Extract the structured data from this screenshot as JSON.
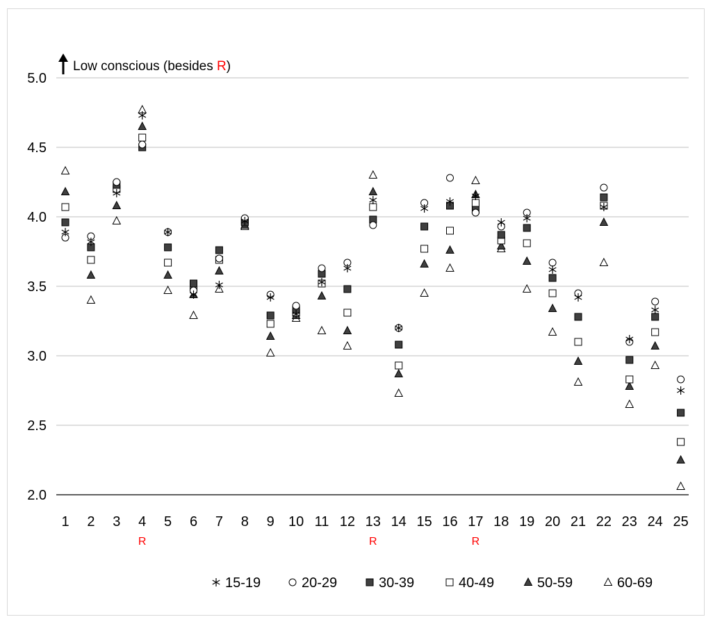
{
  "chart_data": {
    "type": "scatter",
    "title": "",
    "ylabel": "Low conscious (besides R)",
    "ylabel_parts": {
      "prefix": "Low conscious (besides ",
      "highlight": "R",
      "suffix": ")"
    },
    "highlight_color": "#ff0000",
    "ylim": [
      2.0,
      5.0
    ],
    "yticks": [
      "2.0",
      "2.5",
      "3.0",
      "3.5",
      "4.0",
      "4.5",
      "5.0"
    ],
    "categories": [
      "1",
      "2",
      "3",
      "4",
      "5",
      "6",
      "7",
      "8",
      "9",
      "10",
      "11",
      "12",
      "13",
      "14",
      "15",
      "16",
      "17",
      "18",
      "19",
      "20",
      "21",
      "22",
      "23",
      "24",
      "25"
    ],
    "reverse_marker": "R",
    "reverse_items": [
      4,
      13,
      17
    ],
    "grid": true,
    "legend_position": "bottom",
    "series": [
      {
        "name": "15-19",
        "marker": "asterisk",
        "values": [
          3.89,
          3.82,
          4.17,
          4.73,
          3.89,
          3.44,
          3.51,
          3.97,
          3.42,
          3.3,
          3.53,
          3.63,
          4.12,
          3.2,
          4.06,
          4.11,
          4.15,
          3.96,
          3.99,
          3.62,
          3.42,
          4.07,
          3.12,
          3.33,
          2.75
        ]
      },
      {
        "name": "20-29",
        "marker": "circle-open",
        "values": [
          3.85,
          3.86,
          4.25,
          4.52,
          3.89,
          3.47,
          3.7,
          3.99,
          3.44,
          3.36,
          3.63,
          3.67,
          3.94,
          3.2,
          4.1,
          4.28,
          4.03,
          3.93,
          4.03,
          3.67,
          3.45,
          4.21,
          3.1,
          3.39,
          2.83
        ]
      },
      {
        "name": "30-39",
        "marker": "square-filled",
        "values": [
          3.96,
          3.78,
          4.23,
          4.5,
          3.78,
          3.52,
          3.76,
          3.96,
          3.29,
          3.33,
          3.59,
          3.48,
          3.98,
          3.08,
          3.93,
          4.08,
          4.05,
          3.87,
          3.92,
          3.56,
          3.28,
          4.14,
          2.97,
          3.28,
          2.59
        ]
      },
      {
        "name": "40-49",
        "marker": "square-open",
        "values": [
          4.07,
          3.69,
          4.2,
          4.57,
          3.67,
          3.49,
          3.69,
          3.97,
          3.23,
          3.31,
          3.52,
          3.31,
          4.07,
          2.93,
          3.77,
          3.9,
          4.1,
          3.83,
          3.81,
          3.45,
          3.1,
          4.08,
          2.83,
          3.17,
          2.38
        ]
      },
      {
        "name": "50-59",
        "marker": "triangle-filled",
        "values": [
          4.18,
          3.58,
          4.08,
          4.65,
          3.58,
          3.44,
          3.61,
          3.94,
          3.14,
          3.29,
          3.43,
          3.18,
          4.18,
          2.87,
          3.66,
          3.76,
          4.16,
          3.79,
          3.68,
          3.34,
          2.96,
          3.96,
          2.78,
          3.07,
          2.25
        ]
      },
      {
        "name": "60-69",
        "marker": "triangle-open",
        "values": [
          4.33,
          3.4,
          3.97,
          4.77,
          3.47,
          3.29,
          3.48,
          3.93,
          3.02,
          3.27,
          3.18,
          3.07,
          4.3,
          2.73,
          3.45,
          3.63,
          4.26,
          3.77,
          3.48,
          3.17,
          2.81,
          3.67,
          2.65,
          2.93,
          2.06
        ]
      }
    ]
  }
}
